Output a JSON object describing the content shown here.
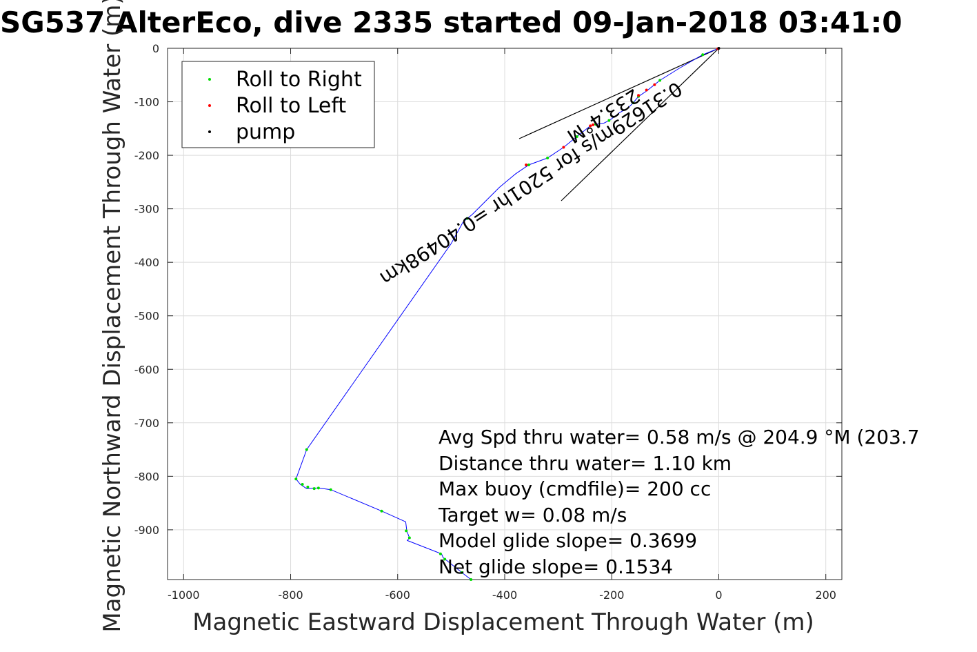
{
  "chart_data": {
    "type": "line",
    "title": "SG537 AlterEco, dive 2335 started 09-Jan-2018 03:41:0",
    "xlabel": "Magnetic Eastward Displacement Through Water (m)",
    "ylabel": "Magnetic Northward Displacement Through Water (m)",
    "xlim": [
      -1030,
      230
    ],
    "ylim": [
      -993,
      0
    ],
    "xticks": [
      -1000,
      -800,
      -600,
      -400,
      -200,
      0,
      200
    ],
    "xtick_labels": [
      "-1000",
      "-800",
      "-600",
      "-400",
      "-200",
      "0",
      "200"
    ],
    "yticks": [
      0,
      -100,
      -200,
      -300,
      -400,
      -500,
      -600,
      -700,
      -800,
      -900
    ],
    "ytick_labels": [
      "0",
      "-100",
      "-200",
      "-300",
      "-400",
      "-500",
      "-600",
      "-700",
      "-800",
      "-900"
    ],
    "grid": true,
    "legend": {
      "placement": "top-left",
      "entries": [
        {
          "label": "Roll to Right",
          "color": "#00dd00"
        },
        {
          "label": "Roll to Left",
          "color": "#ff0000"
        },
        {
          "label": "pump",
          "color": "#000000"
        }
      ]
    },
    "colors": {
      "track": "#0000ff",
      "mark": "#000000",
      "background": "#ffffff",
      "grid": "#dcdcdc"
    },
    "track": {
      "x": [
        0,
        -30,
        -75,
        -110,
        -120,
        -135,
        -150,
        -160,
        -170,
        -185,
        -195,
        -205,
        -215,
        -230,
        -240,
        -265,
        -290,
        -320,
        -355,
        -380,
        -410,
        -435,
        -460,
        -478,
        -500,
        -770,
        -790,
        -782,
        -770,
        -758,
        -747,
        -725,
        -630,
        -585,
        -583,
        -578,
        -582,
        -518,
        -515,
        -505,
        -480,
        -463
      ],
      "y": [
        0,
        -12,
        -38,
        -60,
        -68,
        -80,
        -90,
        -102,
        -112,
        -120,
        -128,
        -135,
        -140,
        -142,
        -145,
        -165,
        -185,
        -205,
        -218,
        -235,
        -260,
        -285,
        -310,
        -325,
        -365,
        -750,
        -805,
        -815,
        -823,
        -822,
        -822,
        -825,
        -865,
        -885,
        -902,
        -915,
        -920,
        -945,
        -952,
        -960,
        -980,
        -993
      ]
    },
    "roll_right": {
      "x": [
        -30,
        -110,
        -150,
        -160,
        -205,
        -230,
        -265,
        -320,
        -355,
        -470,
        -770,
        -790,
        -778,
        -768,
        -756,
        -748,
        -725,
        -630,
        -584,
        -578,
        -520,
        -512,
        -480,
        -463
      ],
      "y": [
        -12,
        -60,
        -90,
        -102,
        -135,
        -142,
        -165,
        -205,
        -218,
        -318,
        -750,
        -805,
        -815,
        -820,
        -823,
        -822,
        -825,
        -865,
        -902,
        -915,
        -945,
        -955,
        -980,
        -993
      ]
    },
    "roll_left": {
      "x": [
        -2,
        -120,
        -135,
        -150,
        -235,
        -240,
        -290,
        -360
      ],
      "y": [
        -1,
        -68,
        -78,
        -88,
        -143,
        -145,
        -185,
        -218
      ]
    },
    "pump": {
      "x": [
        0
      ],
      "y": [
        0
      ]
    },
    "heading_text": "0.31629m/s for 5201hr =0.40498km",
    "heading_label": "233.4°M",
    "stats": [
      "Avg Spd thru water=  0.58 m/s @ 204.9 °M (203.7",
      "Distance thru water=  1.10 km",
      "Max buoy (cmdfile)= 200 cc",
      "Target w= 0.08 m/s",
      "Model glide slope= 0.3699",
      "Net glide slope= 0.1534"
    ]
  }
}
